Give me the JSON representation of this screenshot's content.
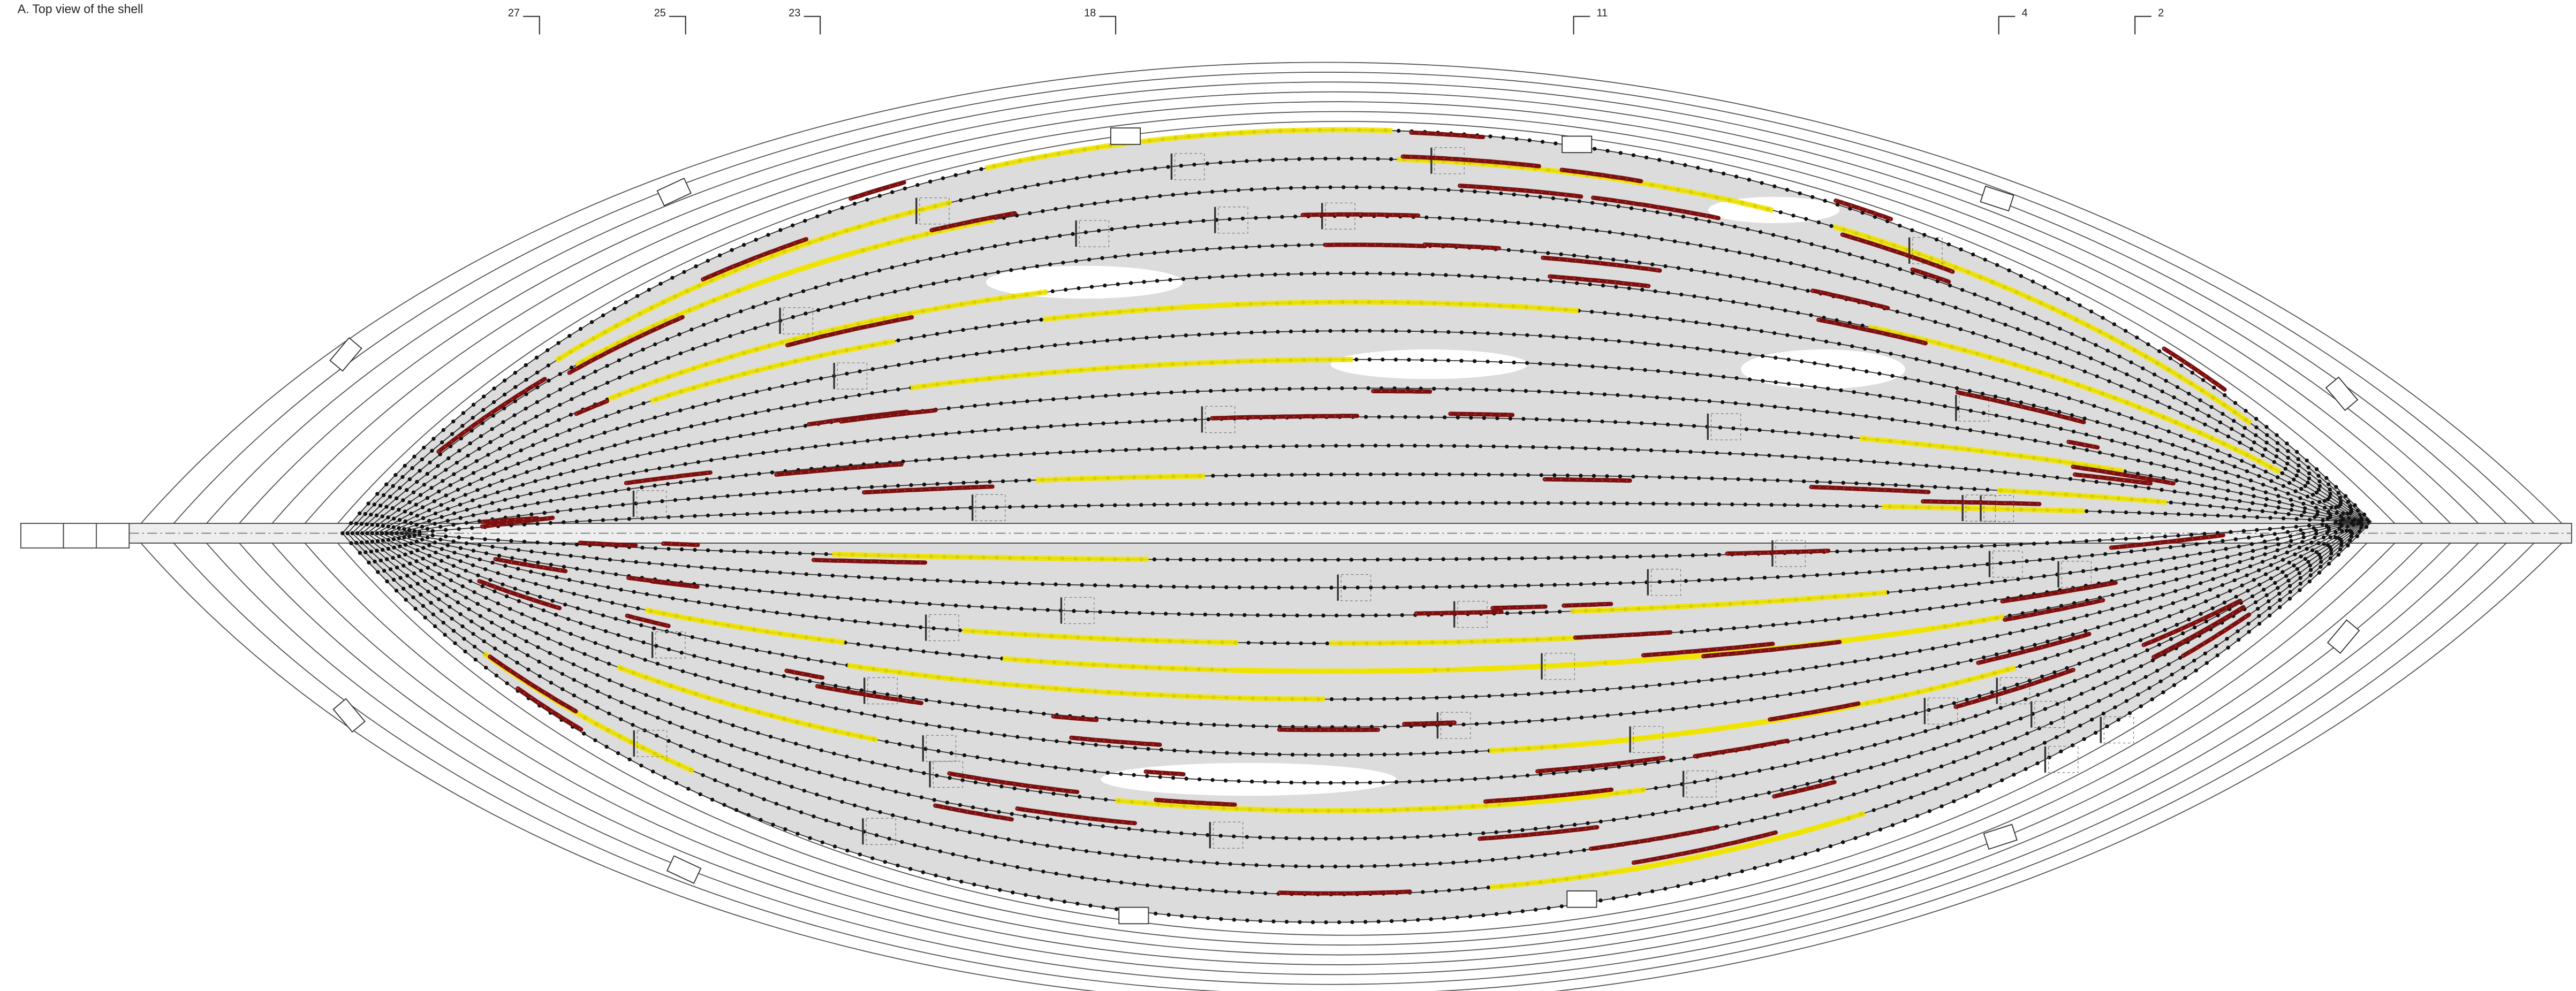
{
  "title": "A. Top view of the shell",
  "frames": [
    "27",
    "25",
    "23",
    "18",
    "11",
    "4",
    "2"
  ]
}
